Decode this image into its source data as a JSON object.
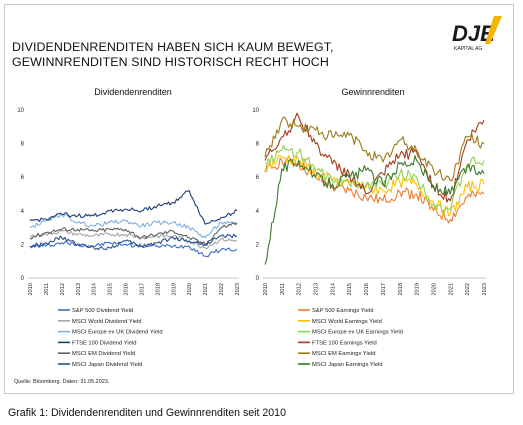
{
  "headline": "DIVIDENDENRENDITEN HABEN SICH KAUM BEWEGT,\nGEWINNRENDITEN SIND HISTORISCH RECHT HOCH",
  "logo": {
    "text": "DJE",
    "sub": "KAPITAL AG",
    "accent": "#f5b400"
  },
  "source": "Quelle: Bloomberg. Daten: 31.05.2023.",
  "caption": "Grafik 1: Dividendenrenditen und Gewinnrenditen seit 2010",
  "chart_data": [
    {
      "type": "line",
      "title": "Dividendenrenditen",
      "x": [
        "2010",
        "2011",
        "2012",
        "2013",
        "2014",
        "2015",
        "2016",
        "2017",
        "2018",
        "2019",
        "2020",
        "2021",
        "2022",
        "2023"
      ],
      "ylim": [
        0,
        10
      ],
      "yticks": [
        0,
        2,
        4,
        6,
        8,
        10
      ],
      "grid": false,
      "legend": "bottom",
      "series": [
        {
          "name": "S&P 500 Dividend Yield",
          "color": "#3a6fc4",
          "values": [
            1.9,
            1.9,
            2.1,
            2.0,
            1.9,
            2.1,
            2.0,
            1.9,
            1.9,
            1.9,
            1.9,
            1.3,
            1.7,
            1.7
          ]
        },
        {
          "name": "MSCI World Dividend Yield",
          "color": "#a6a6a6",
          "values": [
            2.5,
            2.6,
            2.8,
            2.6,
            2.5,
            2.6,
            2.6,
            2.4,
            2.5,
            2.5,
            2.2,
            1.8,
            2.3,
            2.2
          ]
        },
        {
          "name": "MSCI Europe ex UK Dividend Yield",
          "color": "#7fb2e0",
          "values": [
            3.0,
            3.4,
            3.8,
            3.3,
            3.1,
            3.3,
            3.4,
            3.1,
            3.3,
            3.3,
            3.0,
            2.4,
            3.3,
            3.2
          ]
        },
        {
          "name": "FTSE 100 Dividend Yield",
          "color": "#1f3f75",
          "values": [
            3.4,
            3.5,
            3.8,
            3.7,
            3.7,
            4.0,
            4.1,
            4.0,
            4.3,
            4.5,
            5.2,
            3.2,
            3.6,
            4.0
          ]
        },
        {
          "name": "MSCI EM Dividend Yield",
          "color": "#5f5f5f",
          "values": [
            2.4,
            2.7,
            2.9,
            2.9,
            2.8,
            2.9,
            2.9,
            2.4,
            2.6,
            2.8,
            2.4,
            2.0,
            3.0,
            3.3
          ]
        },
        {
          "name": "MSCI Japan Dividend Yield",
          "color": "#2c4e92",
          "values": [
            1.9,
            2.1,
            2.4,
            2.0,
            1.8,
            1.8,
            2.2,
            1.9,
            2.1,
            2.4,
            2.2,
            2.0,
            2.5,
            2.5
          ]
        }
      ]
    },
    {
      "type": "line",
      "title": "Gewinnrenditen",
      "x": [
        "2010",
        "2011",
        "2012",
        "2013",
        "2014",
        "2015",
        "2016",
        "2017",
        "2018",
        "2019",
        "2020",
        "2021",
        "2022",
        "2023"
      ],
      "ylim": [
        0,
        10
      ],
      "yticks": [
        0,
        2,
        4,
        6,
        8,
        10
      ],
      "grid": false,
      "legend": "bottom",
      "series": [
        {
          "name": "S&P 500 Earnings Yield",
          "color": "#ed7d31",
          "values": [
            6.3,
            7.0,
            6.8,
            6.0,
            5.4,
            5.2,
            4.8,
            4.6,
            5.1,
            5.0,
            4.0,
            3.5,
            4.8,
            5.0
          ]
        },
        {
          "name": "MSCI World Earnings Yield",
          "color": "#ffc000",
          "values": [
            6.5,
            7.2,
            7.0,
            6.3,
            5.8,
            5.7,
            5.4,
            5.2,
            5.7,
            5.6,
            4.5,
            3.8,
            5.4,
            5.6
          ]
        },
        {
          "name": "MSCI Europe ex UK Earnings Yield",
          "color": "#92d050",
          "values": [
            6.8,
            7.6,
            7.5,
            6.4,
            5.8,
            5.6,
            5.6,
            5.5,
            6.2,
            6.0,
            4.4,
            4.1,
            6.8,
            7.0
          ]
        },
        {
          "name": "FTSE 100 Earnings Yield",
          "color": "#a23b1c",
          "values": [
            7.0,
            8.4,
            9.6,
            8.0,
            6.8,
            6.2,
            5.0,
            6.2,
            7.3,
            7.5,
            5.5,
            4.6,
            8.2,
            9.4
          ]
        },
        {
          "name": "MSCI EM Earnings Yield",
          "color": "#9c7a1a",
          "values": [
            7.2,
            9.4,
            9.0,
            8.8,
            8.4,
            8.5,
            7.6,
            6.9,
            8.2,
            7.6,
            6.4,
            5.8,
            8.4,
            8.0
          ]
        },
        {
          "name": "MSCI Japan Earnings Yield",
          "color": "#3b7a2a",
          "values": [
            0.8,
            6.5,
            7.0,
            6.0,
            5.6,
            6.0,
            6.4,
            5.6,
            6.8,
            7.0,
            5.4,
            5.0,
            6.6,
            6.2
          ]
        }
      ]
    }
  ]
}
